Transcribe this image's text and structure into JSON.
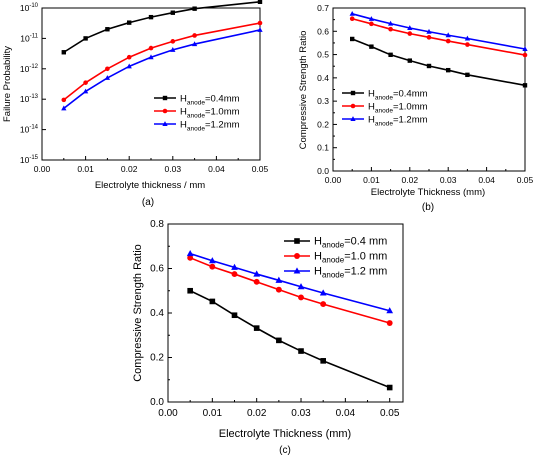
{
  "chart_data": [
    {
      "type": "line",
      "caption": "(a)",
      "xlabel": "Electrolyte thickness / mm",
      "ylabel": "Failure Probability",
      "xlim": [
        0.0,
        0.05
      ],
      "ylim": [
        1e-15,
        1e-10
      ],
      "yscale": "log",
      "x_ticks": [
        "0.00",
        "0.01",
        "0.02",
        "0.03",
        "0.04",
        "0.05"
      ],
      "y_ticks": [
        {
          "base": "10",
          "exp": "-15"
        },
        {
          "base": "10",
          "exp": "-14"
        },
        {
          "base": "10",
          "exp": "-13"
        },
        {
          "base": "10",
          "exp": "-12"
        },
        {
          "base": "10",
          "exp": "-11"
        },
        {
          "base": "10",
          "exp": "-10"
        }
      ],
      "legend_position": "center-right",
      "series": [
        {
          "label_main": "H",
          "label_sub": "anode",
          "label_tail": "=0.4mm",
          "color": "#000000",
          "marker": "square",
          "x": [
            0.005,
            0.01,
            0.015,
            0.02,
            0.025,
            0.03,
            0.035,
            0.05
          ],
          "y": [
            3.5e-12,
            1e-11,
            2e-11,
            3.3e-11,
            5e-11,
            7e-11,
            9.5e-11,
            1.6e-10
          ]
        },
        {
          "label_main": "H",
          "label_sub": "anode",
          "label_tail": "=1.0mm",
          "color": "#ff0000",
          "marker": "circle",
          "x": [
            0.005,
            0.01,
            0.015,
            0.02,
            0.025,
            0.03,
            0.035,
            0.05
          ],
          "y": [
            9.5e-14,
            3.5e-13,
            1e-12,
            2.4e-12,
            4.8e-12,
            8e-12,
            1.25e-11,
            3.2e-11
          ]
        },
        {
          "label_main": "H",
          "label_sub": "anode",
          "label_tail": "=1.2mm",
          "color": "#0000ff",
          "marker": "triangle",
          "x": [
            0.005,
            0.01,
            0.015,
            0.02,
            0.025,
            0.03,
            0.035,
            0.05
          ],
          "y": [
            5e-14,
            1.8e-13,
            5e-13,
            1.2e-12,
            2.4e-12,
            4.2e-12,
            6.5e-12,
            1.9e-11
          ]
        }
      ]
    },
    {
      "type": "line",
      "caption": "(b)",
      "xlabel": "Electrolyte Thickness (mm)",
      "ylabel": "Compressive Strength Ratio",
      "xlim": [
        0.0,
        0.05
      ],
      "ylim": [
        0.0,
        0.7
      ],
      "x_ticks": [
        "0.00",
        "0.01",
        "0.02",
        "0.03",
        "0.04",
        "0.05"
      ],
      "y_ticks": [
        "0.0",
        "0.1",
        "0.2",
        "0.3",
        "0.4",
        "0.5",
        "0.6",
        "0.7"
      ],
      "legend_position": "lower-left",
      "series": [
        {
          "label_main": "H",
          "label_sub": "anode",
          "label_tail": "=0.4mm",
          "color": "#000000",
          "marker": "square",
          "x": [
            0.005,
            0.01,
            0.015,
            0.02,
            0.025,
            0.03,
            0.035,
            0.05
          ],
          "y": [
            0.567,
            0.534,
            0.499,
            0.474,
            0.451,
            0.433,
            0.413,
            0.368
          ]
        },
        {
          "label_main": "H",
          "label_sub": "anode",
          "label_tail": "=1.0mm",
          "color": "#ff0000",
          "marker": "circle",
          "x": [
            0.005,
            0.01,
            0.015,
            0.02,
            0.025,
            0.03,
            0.035,
            0.05
          ],
          "y": [
            0.654,
            0.632,
            0.609,
            0.59,
            0.574,
            0.558,
            0.543,
            0.498
          ]
        },
        {
          "label_main": "H",
          "label_sub": "anode",
          "label_tail": "=1.2mm",
          "color": "#0000ff",
          "marker": "triangle",
          "x": [
            0.005,
            0.01,
            0.015,
            0.02,
            0.025,
            0.03,
            0.035,
            0.05
          ],
          "y": [
            0.675,
            0.653,
            0.633,
            0.614,
            0.598,
            0.583,
            0.569,
            0.524
          ]
        }
      ]
    },
    {
      "type": "line",
      "caption": "(c)",
      "xlabel": "Electrolyte Thickness (mm)",
      "ylabel": "Compressive Strength Ratio",
      "xlim": [
        0.0,
        0.053
      ],
      "ylim": [
        0.0,
        0.8
      ],
      "x_ticks": [
        "0.00",
        "0.01",
        "0.02",
        "0.03",
        "0.04",
        "0.05"
      ],
      "y_ticks": [
        "0.0",
        "0.2",
        "0.4",
        "0.6",
        "0.8"
      ],
      "legend_position": "top-right",
      "series": [
        {
          "label_main": "H",
          "label_sub": "anode",
          "label_tail": "=0.4 mm",
          "color": "#000000",
          "marker": "square",
          "x": [
            0.005,
            0.01,
            0.015,
            0.02,
            0.025,
            0.03,
            0.035,
            0.05
          ],
          "y": [
            0.5,
            0.452,
            0.39,
            0.332,
            0.277,
            0.229,
            0.185,
            0.065
          ]
        },
        {
          "label_main": "H",
          "label_sub": "anode",
          "label_tail": "=1.0 mm",
          "color": "#ff0000",
          "marker": "circle",
          "x": [
            0.005,
            0.01,
            0.015,
            0.02,
            0.025,
            0.03,
            0.035,
            0.05
          ],
          "y": [
            0.648,
            0.608,
            0.575,
            0.54,
            0.505,
            0.47,
            0.44,
            0.355
          ]
        },
        {
          "label_main": "H",
          "label_sub": "anode",
          "label_tail": "=1.2 mm",
          "color": "#0000ff",
          "marker": "triangle",
          "x": [
            0.005,
            0.01,
            0.015,
            0.02,
            0.025,
            0.03,
            0.035,
            0.05
          ],
          "y": [
            0.667,
            0.635,
            0.605,
            0.575,
            0.547,
            0.518,
            0.49,
            0.41
          ]
        }
      ]
    }
  ]
}
